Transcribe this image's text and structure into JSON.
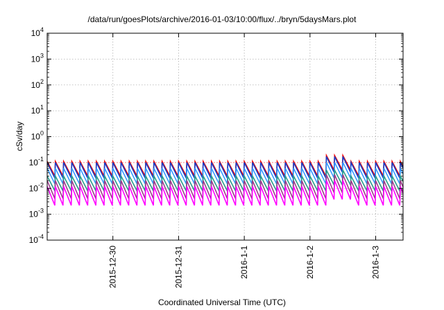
{
  "chart_data": {
    "type": "line",
    "title": "/data/run/goesPlots/archive/2016-01-03/10:00/flux/../bryn/5daysMars.plot",
    "xlabel": "Coordinated Universal Time (UTC)",
    "ylabel": "cSv/day",
    "y_scale": "log",
    "ylim": [
      0.0001,
      10000
    ],
    "y_ticks": [
      {
        "base": "10",
        "exp": "-4"
      },
      {
        "base": "10",
        "exp": "-3"
      },
      {
        "base": "10",
        "exp": "-2"
      },
      {
        "base": "10",
        "exp": "-1"
      },
      {
        "base": "10",
        "exp": "0"
      },
      {
        "base": "10",
        "exp": "1"
      },
      {
        "base": "10",
        "exp": "2"
      },
      {
        "base": "10",
        "exp": "3"
      },
      {
        "base": "10",
        "exp": "4"
      }
    ],
    "xlim": [
      "2015-12-29 00:00",
      "2016-01-03 10:00"
    ],
    "x_tick_labels": [
      "2015-12-30",
      "2015-12-31",
      "2016-1-1",
      "2016-1-2",
      "2016-1-3"
    ],
    "x_tick_dates": [
      "2015-12-30 00:00",
      "2015-12-31 00:00",
      "2016-01-01 00:00",
      "2016-01-02 00:00",
      "2016-01-03 00:00"
    ],
    "grid": true,
    "threshold_line": {
      "value": 0.1,
      "color": "#ff8080"
    },
    "pattern": {
      "cycle_hours": 3,
      "first_peak": "2015-12-29 00:00",
      "enhanced_window": [
        "2016-01-02 04:00",
        "2016-01-02 14:00"
      ],
      "enhanced_factor": 1.7
    },
    "series": [
      {
        "color": "#ee0000",
        "peak": 0.11,
        "trough": 0.03
      },
      {
        "color": "#1a3fc8",
        "peak": 0.1,
        "trough": 0.025
      },
      {
        "color": "#3399ff",
        "peak": 0.06,
        "trough": 0.015
      },
      {
        "color": "#2a9a8a",
        "peak": 0.03,
        "trough": 0.008
      },
      {
        "color": "#9a3a8a",
        "peak": 0.02,
        "trough": 0.004
      },
      {
        "color": "#ff00ff",
        "peak": 0.012,
        "trough": 0.0022
      }
    ]
  }
}
